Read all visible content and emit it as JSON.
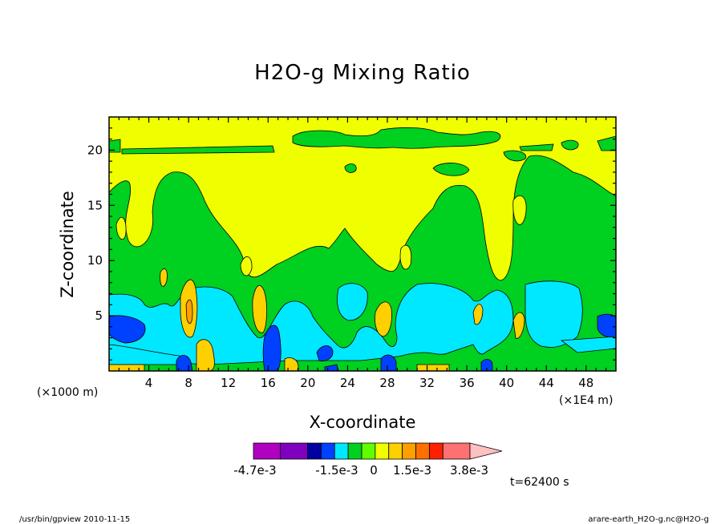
{
  "chart_data": {
    "type": "heatmap",
    "title": "H2O-g Mixing Ratio",
    "xlabel": "X-coordinate",
    "ylabel": "Z-coordinate",
    "x_unit_left": "(×1000 m)",
    "x_unit_right": "(×1E4 m)",
    "xlim": [
      0,
      51
    ],
    "ylim": [
      0,
      23
    ],
    "x_ticks": [
      4,
      8,
      12,
      16,
      20,
      24,
      28,
      32,
      36,
      40,
      44,
      48
    ],
    "y_ticks": [
      5,
      10,
      15,
      20
    ],
    "colorbar": {
      "levels_labeled": [
        "-4.7e-3",
        "-1.5e-3",
        "0",
        "1.5e-3",
        "3.8e-3"
      ],
      "colors": [
        "#b000c0",
        "#8000c0",
        "#0000a0",
        "#0040ff",
        "#00e8ff",
        "#00d020",
        "#60ff00",
        "#f0ff00",
        "#ffd000",
        "#ffa000",
        "#ff7000",
        "#ff2000",
        "#ff7070",
        "#ffc0c0"
      ]
    },
    "annotation": "t=62400 s"
  },
  "footer": {
    "left": "/usr/bin/gpview  2010-11-15",
    "right": "arare-earth_H2O-g.nc@H2O-g"
  }
}
